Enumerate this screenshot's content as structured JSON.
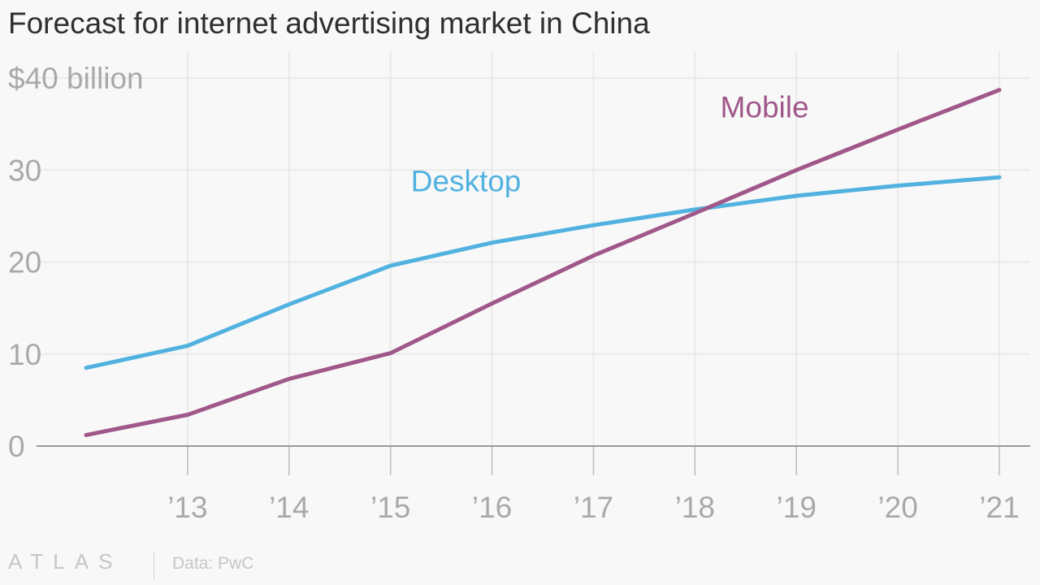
{
  "title": "Forecast for internet advertising market in China",
  "footer": {
    "brand": "ATLAS",
    "source": "Data: PwC"
  },
  "colors": {
    "background": "#f8f8f8",
    "desktop": "#51b2e0",
    "mobile": "#a0578a",
    "grid": "#e6e6e6",
    "tick_text": "#a9a9a9"
  },
  "chart_data": {
    "type": "line",
    "x": [
      2012,
      2013,
      2014,
      2015,
      2016,
      2017,
      2018,
      2019,
      2020,
      2021
    ],
    "x_tick_values": [
      2013,
      2014,
      2015,
      2016,
      2017,
      2018,
      2019,
      2020,
      2021
    ],
    "x_tick_labels": [
      "’13",
      "’14",
      "’15",
      "’16",
      "’17",
      "’18",
      "’19",
      "’20",
      "’21"
    ],
    "y_tick_values": [
      0,
      10,
      20,
      30,
      40
    ],
    "y_tick_labels": [
      "0",
      "10",
      "20",
      "30",
      "$40 billion"
    ],
    "ylim": [
      0,
      40
    ],
    "grid": true,
    "series": [
      {
        "name": "Desktop",
        "color": "#51b2e0",
        "values": [
          8.5,
          10.9,
          15.4,
          19.6,
          22.1,
          24.0,
          25.7,
          27.2,
          28.3,
          29.2
        ]
      },
      {
        "name": "Mobile",
        "color": "#a0578a",
        "values": [
          1.2,
          3.4,
          7.3,
          10.1,
          15.5,
          20.7,
          25.3,
          30.0,
          34.4,
          38.7
        ]
      }
    ],
    "title": "Forecast for internet advertising market in China",
    "xlabel": "",
    "ylabel": ""
  }
}
